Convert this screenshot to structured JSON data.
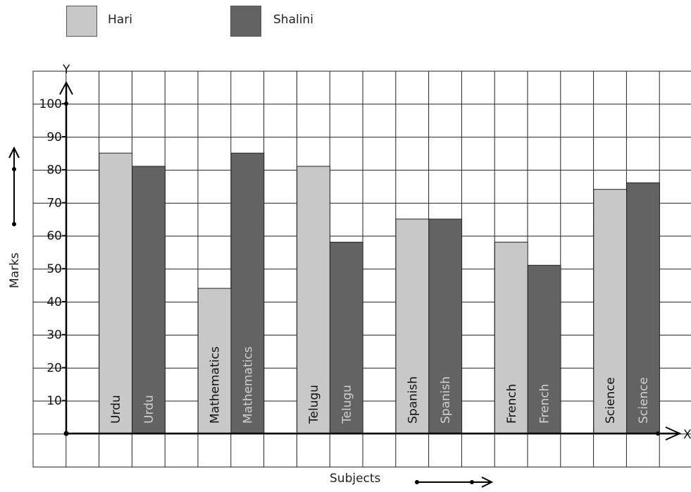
{
  "chart_data": {
    "type": "bar",
    "categories": [
      "Urdu",
      "Mathematics",
      "Telugu",
      "Spanish",
      "French",
      "Science"
    ],
    "series": [
      {
        "name": "Hari",
        "values": [
          85,
          44,
          81,
          65,
          58,
          74
        ],
        "color": "#c8c8c8"
      },
      {
        "name": "Shalini",
        "values": [
          81,
          85,
          58,
          65,
          51,
          76
        ],
        "color": "#636363"
      }
    ],
    "xlabel": "Subjects",
    "ylabel": "Marks",
    "y_axis_letter": "Y",
    "x_axis_letter": "X",
    "ylim": [
      0,
      100
    ],
    "yticks": [
      10,
      20,
      30,
      40,
      50,
      60,
      70,
      80,
      90,
      100
    ],
    "grid": true,
    "legend": "top-left",
    "bar_labels": "category name inside each bar, vertical"
  }
}
